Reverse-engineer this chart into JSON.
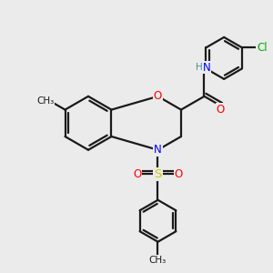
{
  "bg_color": "#ebebeb",
  "bond_color": "#1a1a1a",
  "bond_width": 1.6,
  "atom_colors": {
    "O": "#ff0000",
    "N": "#0000ff",
    "S": "#cccc00",
    "Cl": "#00aa00",
    "H": "#4a9090",
    "C": "#1a1a1a"
  },
  "font_size": 8.5,
  "fig_size": [
    3.0,
    3.0
  ],
  "dpi": 100
}
